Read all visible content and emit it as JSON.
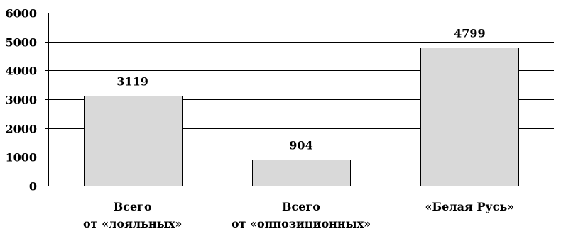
{
  "chart_data": {
    "type": "bar",
    "title": "",
    "xlabel": "",
    "ylabel": "",
    "ylim": [
      0,
      6000
    ],
    "yticks": [
      "0",
      "1000",
      "2000",
      "3000",
      "4000",
      "5000",
      "6000"
    ],
    "grid": true,
    "legend": "none",
    "categories": [
      [
        "Всего",
        "от «лояльных»"
      ],
      [
        "Всего",
        "от «оппозиционных»"
      ],
      [
        "«Белая Русь»"
      ]
    ],
    "values": [
      3119,
      904,
      4799
    ],
    "data_labels": [
      "3119",
      "904",
      "4799"
    ],
    "bar_color": "#d9d9d9",
    "line_color": "#000000"
  }
}
